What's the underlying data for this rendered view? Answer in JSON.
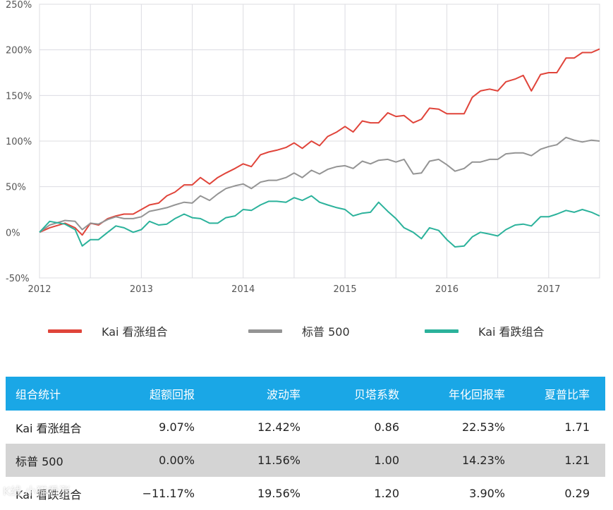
{
  "chart_data": {
    "type": "line",
    "x_ticks": [
      "2012",
      "2013",
      "2014",
      "2015",
      "2016",
      "2017"
    ],
    "y_ticks": [
      "250%",
      "200%",
      "150%",
      "100%",
      "50%",
      "0%",
      "-50%"
    ],
    "ylim": [
      -50,
      250
    ],
    "xlim": [
      2012.0,
      2017.5
    ],
    "grid": true,
    "legend_position": "bottom",
    "series": [
      {
        "name": "Kai 看涨组合",
        "color": "#e0443a",
        "x": [
          2012.0,
          2012.1,
          2012.25,
          2012.35,
          2012.42,
          2012.5,
          2012.58,
          2012.67,
          2012.75,
          2012.83,
          2012.92,
          2013.0,
          2013.08,
          2013.17,
          2013.25,
          2013.33,
          2013.42,
          2013.5,
          2013.58,
          2013.67,
          2013.75,
          2013.83,
          2013.92,
          2014.0,
          2014.08,
          2014.17,
          2014.25,
          2014.33,
          2014.42,
          2014.5,
          2014.58,
          2014.67,
          2014.75,
          2014.83,
          2014.92,
          2015.0,
          2015.08,
          2015.17,
          2015.25,
          2015.33,
          2015.42,
          2015.5,
          2015.58,
          2015.67,
          2015.75,
          2015.83,
          2015.92,
          2016.0,
          2016.08,
          2016.17,
          2016.25,
          2016.33,
          2016.42,
          2016.5,
          2016.58,
          2016.67,
          2016.75,
          2016.83,
          2016.92,
          2017.0,
          2017.08,
          2017.17,
          2017.25,
          2017.33,
          2017.42,
          2017.5
        ],
        "values": [
          0,
          5,
          10,
          5,
          -3,
          10,
          8,
          15,
          18,
          20,
          20,
          25,
          30,
          32,
          40,
          44,
          52,
          52,
          60,
          53,
          60,
          65,
          70,
          75,
          72,
          85,
          88,
          90,
          93,
          98,
          92,
          100,
          95,
          105,
          110,
          116,
          110,
          122,
          120,
          120,
          131,
          127,
          128,
          120,
          124,
          136,
          135,
          130,
          130,
          130,
          148,
          155,
          157,
          155,
          165,
          168,
          172,
          155,
          173,
          175,
          175,
          191,
          191,
          197,
          197,
          201
        ]
      },
      {
        "name": "标普 500",
        "color": "#949494",
        "x": [
          2012.0,
          2012.1,
          2012.25,
          2012.35,
          2012.42,
          2012.5,
          2012.58,
          2012.67,
          2012.75,
          2012.83,
          2012.92,
          2013.0,
          2013.08,
          2013.17,
          2013.25,
          2013.33,
          2013.42,
          2013.5,
          2013.58,
          2013.67,
          2013.75,
          2013.83,
          2013.92,
          2014.0,
          2014.08,
          2014.17,
          2014.25,
          2014.33,
          2014.42,
          2014.5,
          2014.58,
          2014.67,
          2014.75,
          2014.83,
          2014.92,
          2015.0,
          2015.08,
          2015.17,
          2015.25,
          2015.33,
          2015.42,
          2015.5,
          2015.58,
          2015.67,
          2015.75,
          2015.83,
          2015.92,
          2016.0,
          2016.08,
          2016.17,
          2016.25,
          2016.33,
          2016.42,
          2016.5,
          2016.58,
          2016.67,
          2016.75,
          2016.83,
          2016.92,
          2017.0,
          2017.08,
          2017.17,
          2017.25,
          2017.33,
          2017.42,
          2017.5
        ],
        "values": [
          0,
          8,
          13,
          12,
          3,
          10,
          9,
          14,
          17,
          15,
          15,
          17,
          23,
          25,
          27,
          30,
          33,
          32,
          40,
          35,
          42,
          48,
          51,
          53,
          48,
          55,
          57,
          57,
          60,
          65,
          60,
          68,
          64,
          69,
          72,
          73,
          70,
          78,
          75,
          79,
          80,
          77,
          80,
          64,
          65,
          78,
          80,
          74,
          67,
          70,
          77,
          77,
          80,
          80,
          86,
          87,
          87,
          84,
          91,
          94,
          96,
          104,
          101,
          99,
          101,
          100
        ]
      },
      {
        "name": "Kai 看跌组合",
        "color": "#2bb29b",
        "x": [
          2012.0,
          2012.1,
          2012.25,
          2012.35,
          2012.42,
          2012.5,
          2012.58,
          2012.67,
          2012.75,
          2012.83,
          2012.92,
          2013.0,
          2013.08,
          2013.17,
          2013.25,
          2013.33,
          2013.42,
          2013.5,
          2013.58,
          2013.67,
          2013.75,
          2013.83,
          2013.92,
          2014.0,
          2014.08,
          2014.17,
          2014.25,
          2014.33,
          2014.42,
          2014.5,
          2014.58,
          2014.67,
          2014.75,
          2014.83,
          2014.92,
          2015.0,
          2015.08,
          2015.17,
          2015.25,
          2015.33,
          2015.42,
          2015.5,
          2015.58,
          2015.67,
          2015.75,
          2015.83,
          2015.92,
          2016.0,
          2016.08,
          2016.17,
          2016.25,
          2016.33,
          2016.42,
          2016.5,
          2016.58,
          2016.67,
          2016.75,
          2016.83,
          2016.92,
          2017.0,
          2017.08,
          2017.17,
          2017.25,
          2017.33,
          2017.42,
          2017.5
        ],
        "values": [
          0,
          12,
          9,
          3,
          -15,
          -8,
          -8,
          0,
          7,
          5,
          0,
          3,
          12,
          8,
          9,
          15,
          20,
          16,
          15,
          10,
          10,
          16,
          18,
          25,
          24,
          30,
          34,
          34,
          33,
          38,
          35,
          40,
          33,
          30,
          27,
          25,
          18,
          21,
          22,
          33,
          23,
          15,
          5,
          0,
          -7,
          5,
          2,
          -8,
          -16,
          -15,
          -5,
          0,
          -2,
          -4,
          3,
          8,
          9,
          7,
          17,
          17,
          20,
          24,
          22,
          25,
          22,
          18
        ]
      }
    ]
  },
  "legend": [
    {
      "label": "Kai 看涨组合",
      "color": "#e0443a"
    },
    {
      "label": "标普 500",
      "color": "#949494"
    },
    {
      "label": "Kai 看跌组合",
      "color": "#2bb29b"
    }
  ],
  "table": {
    "header_color": "#1aa7e6",
    "headers": [
      "组合统计",
      "超额回报",
      "波动率",
      "贝塔系数",
      "年化回报率",
      "夏普比率"
    ],
    "rows": [
      [
        "Kai 看涨组合",
        "9.07%",
        "12.42%",
        "0.86",
        "22.53%",
        "1.71"
      ],
      [
        "标普 500",
        "0.00%",
        "11.56%",
        "1.00",
        "14.23%",
        "1.21"
      ],
      [
        "Kai 看跌组合",
        "−11.17%",
        "19.56%",
        "1.20",
        "3.90%",
        "0.29"
      ]
    ]
  },
  "watermark": "K线 小猫看涨"
}
